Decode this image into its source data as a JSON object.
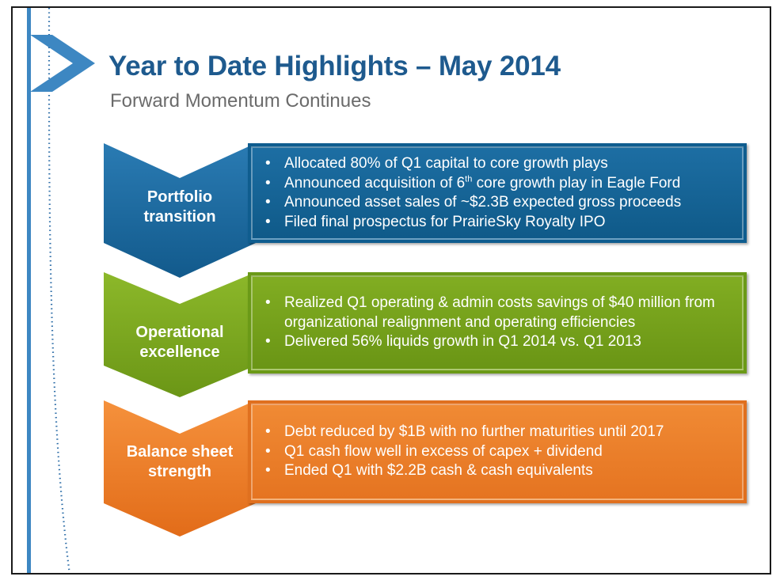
{
  "header": {
    "title": "Year to Date Highlights – May 2014",
    "subtitle": "Forward Momentum Continues"
  },
  "sections": [
    {
      "label": "Portfolio\ntransition",
      "color": "#1a6aa0",
      "bullets": [
        {
          "pre": "Allocated 80% of Q1 capital to core growth plays"
        },
        {
          "pre": "Announced acquisition of 6",
          "sup": "th",
          "post": " core growth play in Eagle Ford"
        },
        {
          "pre": "Announced asset sales of ~$2.3B expected gross proceeds"
        },
        {
          "pre": "Filed final prospectus for PrairieSky Royalty IPO"
        }
      ]
    },
    {
      "label": "Operational\nexcellence",
      "color": "#7aa51d",
      "bullets": [
        {
          "pre": "Realized Q1 operating & admin costs savings of $40 million from organizational realignment and operating efficiencies"
        },
        {
          "pre": "Delivered 56% liquids growth in Q1 2014 vs. Q1 2013"
        }
      ]
    },
    {
      "label": "Balance sheet\nstrength",
      "color": "#f07d22",
      "bullets": [
        {
          "pre": "Debt reduced by $1B with no further maturities until 2017"
        },
        {
          "pre": "Q1 cash flow well in excess of capex + dividend"
        },
        {
          "pre": "Ended Q1 with $2.2B cash & cash equivalents"
        }
      ]
    }
  ],
  "bullet_glyph": "•",
  "colors": {
    "title": "#1e5a8e",
    "subtitle": "#6b6b6b",
    "accent_arrow": "#3d87c2"
  }
}
